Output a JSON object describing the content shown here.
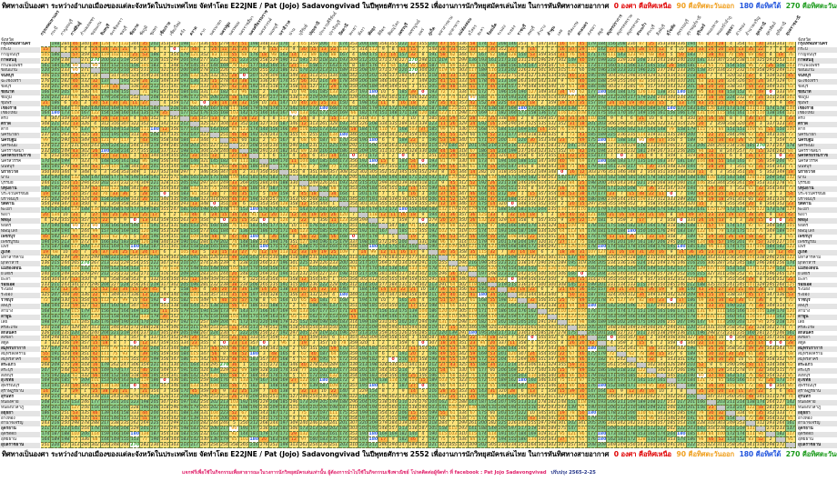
{
  "title": {
    "main": "ทิศทางเป็นองศา ระหว่างอำเภอเมืองของแต่ละจังหวัดในประเทศไทย จัดทำโดย E22JNE / Pat (Jojo) Sadavongvivad ในปีพุทธศักราช 2552 เพื่องานการนักวิทยุสมัครเล่นไทย ในการหันทิศทางสายอากาศ",
    "legend": [
      {
        "text": "0 องศา คือทิศเหนือ",
        "color": "#e00000"
      },
      {
        "text": "90 คือทิศตะวันออก",
        "color": "#f0a020"
      },
      {
        "text": "180 คือทิศใต้",
        "color": "#2255dd"
      },
      {
        "text": "270 คือทิศตะวันตก",
        "color": "#1a9a1a"
      }
    ]
  },
  "corner_label": "จังหวัด",
  "provinces": [
    "กรุงเทพมหานคร",
    "กระบี่",
    "กาญจนบุรี",
    "กาฬสินธุ์",
    "กำแพงเพชร",
    "ขอนแก่น",
    "จันทบุรี",
    "ฉะเชิงเทรา",
    "ชลบุรี",
    "ชัยนาท",
    "ชัยภูมิ",
    "ชุมพร",
    "เชียงราย",
    "เชียงใหม่",
    "ตรัง",
    "ตราด",
    "ตาก",
    "นครนายก",
    "นครปฐม",
    "นครพนม",
    "นครราชสีมา",
    "นครศรีธรรมราช",
    "นครสวรรค์",
    "นนทบุรี",
    "นราธิวาส",
    "น่าน",
    "บุรีรัมย์",
    "ปทุมธานี",
    "ประจวบคีรีขันธ์",
    "ปราจีนบุรี",
    "ปัตตานี",
    "พะเยา",
    "พังงา",
    "พัทลุง",
    "พิจิตร",
    "พิษณุโลก",
    "เพชรบุรี",
    "เพชรบูรณ์",
    "แพร่",
    "ภูเก็ต",
    "มหาสารคาม",
    "มุกดาหาร",
    "แม่ฮ่องสอน",
    "ยโสธร",
    "ยะลา",
    "ร้อยเอ็ด",
    "ระนอง",
    "ระยอง",
    "ราชบุรี",
    "ลพบุรี",
    "ลำปาง",
    "ลำพูน",
    "เลย",
    "ศรีสะเกษ",
    "สกลนคร",
    "สงขลา",
    "สตูล",
    "สมุทรปราการ",
    "สมุทรสงคราม",
    "สมุทรสาคร",
    "สระแก้ว",
    "สระบุรี",
    "สิงห์บุรี",
    "สุโขทัย",
    "สุพรรณบุรี",
    "สุราษฎร์ธานี",
    "สุรินทร์",
    "หนองคาย",
    "หนองบัวลำภู",
    "อยุธยา",
    "อ่างทอง",
    "อำนาจเจริญ",
    "อุดรธานี",
    "อุตรดิตถ์",
    "อุทัยธานี",
    "อุบลราชธานี"
  ],
  "bearing_rows": {
    "0": [
      null,
      198,
      284,
      46,
      340,
      39,
      128,
      97,
      132,
      344,
      35,
      202,
      353,
      343,
      198,
      127,
      336,
      55,
      279,
      47,
      51,
      198,
      348,
      333,
      170,
      2,
      65,
      359,
      206,
      70,
      174,
      353,
      200,
      184,
      356,
      355,
      222,
      12,
      355,
      200,
      47,
      55,
      336,
      58,
      174,
      52,
      208,
      146,
      253,
      6,
      347,
      343,
      16,
      69,
      45,
      179,
      184,
      156,
      208,
      230,
      87,
      25,
      353,
      348,
      336,
      194,
      66,
      27,
      28,
      4,
      354,
      61,
      30,
      343,
      343,
      70
    ]
  },
  "colors": {
    "north_east": "#f6b547",
    "south": "#8fd08c",
    "other": "#ffe27a",
    "diagonal": "#c8c8c8",
    "north_east_text": "#d01010"
  },
  "footer": {
    "notice": "แจกฟรีเพื่อใช้ในกิจกรรมเพื่อสาธารณะในวงการนักวิทยุสมัครเล่นเท่านั้น ผู้ต้องการนำไปใช้ในกิจกรรมเชิงพาณิชย์ โปรดติดต่อผู้จัดทำ ที่ facebook : Pat Jojo Sadavongvivad",
    "updated": "ปรับปรุง 2565-2-25"
  }
}
